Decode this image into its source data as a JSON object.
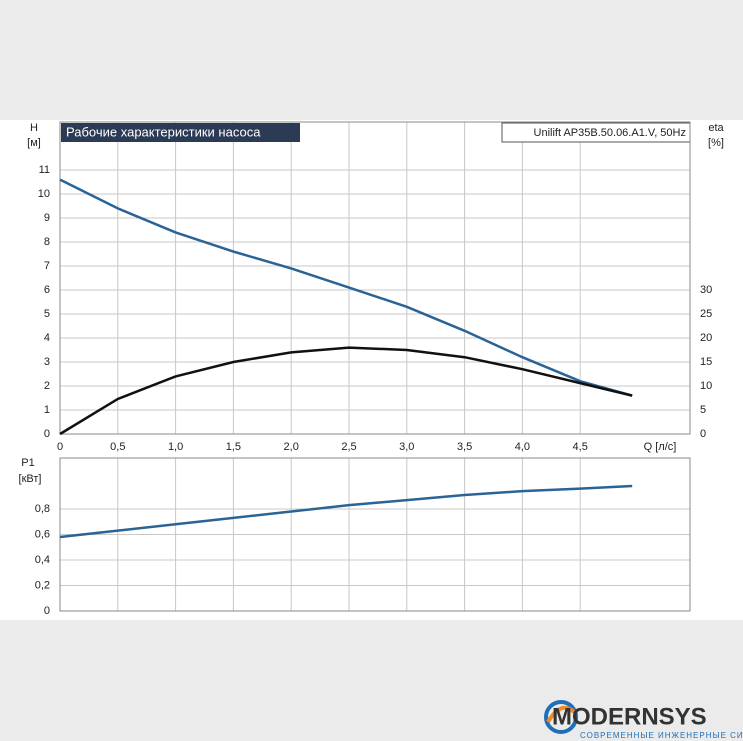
{
  "chart_data": [
    {
      "type": "line",
      "title": "Рабочие характеристики насоса",
      "subtitle": "Unilift AP35B.50.06.A1.V, 50Hz",
      "y_label": [
        "H",
        "[м]"
      ],
      "y2_label": [
        "eta",
        "[%]"
      ],
      "x_label": "Q [л/с]",
      "x": [
        0,
        0.5,
        1.0,
        1.5,
        2.0,
        2.5,
        3.0,
        3.5,
        4.0,
        4.5,
        4.95
      ],
      "series": [
        {
          "color": "#2a6496",
          "values": [
            10.6,
            9.4,
            8.4,
            7.6,
            6.9,
            6.1,
            5.3,
            4.3,
            3.2,
            2.2,
            1.6
          ]
        },
        {
          "color": "#111111",
          "axis": "y2",
          "values": [
            0,
            7.3,
            12,
            15,
            17,
            18,
            17.5,
            16,
            13.5,
            10.6,
            8
          ]
        }
      ],
      "xlim": [
        0,
        5.45
      ],
      "xticks": [
        0,
        {
          "value": 0.5,
          "label": "0,5"
        },
        {
          "value": 1.0,
          "label": "1,0"
        },
        {
          "value": 1.5,
          "label": "1,5"
        },
        {
          "value": 2.0,
          "label": "2,0"
        },
        {
          "value": 2.5,
          "label": "2,5"
        },
        {
          "value": 3.0,
          "label": "3,0"
        },
        {
          "value": 3.5,
          "label": "3,5"
        },
        {
          "value": 4.0,
          "label": "4,0"
        },
        {
          "value": 4.5,
          "label": "4,5"
        }
      ],
      "ylim": [
        0,
        13
      ],
      "yticks": [
        0,
        1,
        2,
        3,
        4,
        5,
        6,
        7,
        8,
        9,
        10,
        11
      ],
      "y2lim": [
        0,
        65
      ],
      "y2ticks": [
        0,
        5,
        10,
        15,
        20,
        25,
        30
      ],
      "grid": true
    },
    {
      "type": "line",
      "y_label": [
        "P1",
        "[кВт]"
      ],
      "x": [
        0,
        0.5,
        1.0,
        1.5,
        2.0,
        2.5,
        3.0,
        3.5,
        4.0,
        4.5,
        4.95
      ],
      "series": [
        {
          "color": "#2a6496",
          "values": [
            0.58,
            0.63,
            0.68,
            0.73,
            0.78,
            0.83,
            0.87,
            0.91,
            0.94,
            0.96,
            0.98
          ]
        }
      ],
      "xlim": [
        0,
        5.45
      ],
      "ylim": [
        0,
        1.2
      ],
      "yticks": [
        0,
        {
          "value": 0.2,
          "label": "0,2"
        },
        {
          "value": 0.4,
          "label": "0,4"
        },
        {
          "value": 0.6,
          "label": "0,6"
        },
        {
          "value": 0.8,
          "label": "0,8"
        }
      ],
      "grid": true
    }
  ],
  "logo": {
    "name": "MODERNSYS",
    "tagline": "СОВРЕМЕННЫЕ ИНЖЕНЕРНЫЕ СИСТЕМЫ"
  }
}
